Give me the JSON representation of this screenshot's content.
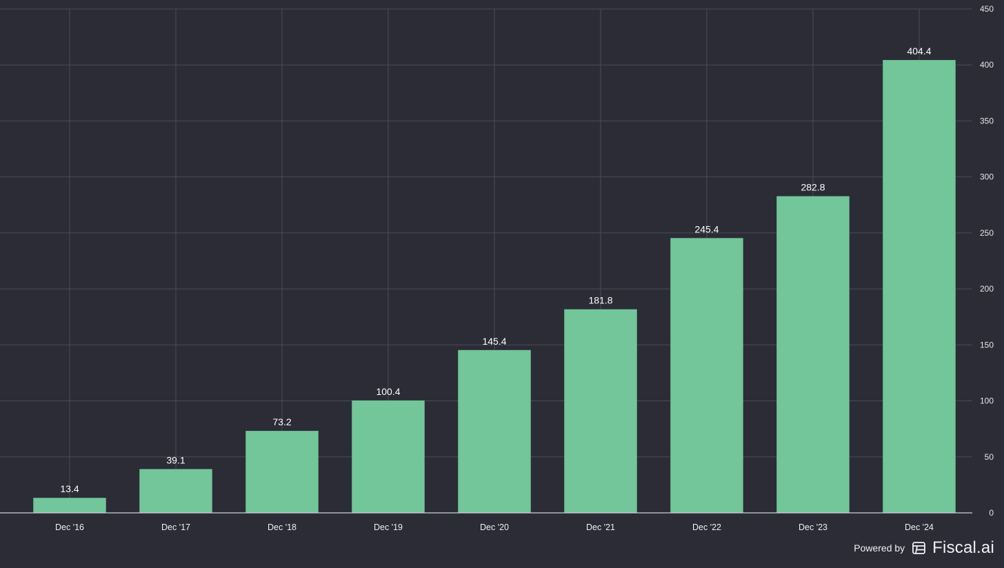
{
  "colors": {
    "background": "#2b2c36",
    "bar": "#72c69a",
    "grid": "#4a4b56",
    "text": "#ffffff"
  },
  "chart_data": {
    "type": "bar",
    "categories": [
      "Dec '16",
      "Dec '17",
      "Dec '18",
      "Dec '19",
      "Dec '20",
      "Dec '21",
      "Dec '22",
      "Dec '23",
      "Dec '24"
    ],
    "values": [
      13.4,
      39.1,
      73.2,
      100.4,
      145.4,
      181.8,
      245.4,
      282.8,
      404.4
    ],
    "value_labels": [
      "13.4",
      "39.1",
      "73.2",
      "100.4",
      "145.4",
      "181.8",
      "245.4",
      "282.8",
      "404.4"
    ],
    "title": "",
    "xlabel": "",
    "ylabel": "",
    "ylim": [
      0,
      450
    ],
    "yticks": [
      0,
      50,
      100,
      150,
      200,
      250,
      300,
      350,
      400,
      450
    ],
    "y_axis_position": "right",
    "grid": true,
    "legend": "none"
  },
  "footer": {
    "powered_by": "Powered by",
    "brand": "Fiscal.ai",
    "logo_icon": "fiscal-logo-icon"
  }
}
